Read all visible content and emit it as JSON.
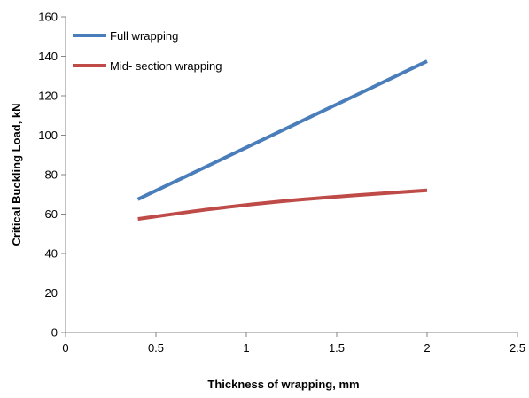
{
  "chart_data": {
    "type": "line",
    "title": "",
    "xlabel": "Thickness of wrapping, mm",
    "ylabel": "Critical Buckling  Load, kN",
    "xlim": [
      0,
      2.5
    ],
    "ylim": [
      0,
      160
    ],
    "x_ticks": [
      0,
      0.5,
      1,
      1.5,
      2,
      2.5
    ],
    "x_tick_labels": [
      "0",
      "0.5",
      "1",
      "1.5",
      "2",
      "2.5"
    ],
    "y_ticks": [
      0,
      20,
      40,
      60,
      80,
      100,
      120,
      140,
      160
    ],
    "y_tick_labels": [
      "0",
      "20",
      "40",
      "60",
      "80",
      "100",
      "120",
      "140",
      "160"
    ],
    "grid": false,
    "legend_position": "top-left",
    "series": [
      {
        "name": "Full wrapping",
        "color": "#4a7ebb",
        "x": [
          0.4,
          0.8,
          1.2,
          1.6,
          2.0
        ],
        "y": [
          67.5,
          85.0,
          102.5,
          120.0,
          137.5
        ]
      },
      {
        "name": "Mid- section wrapping",
        "color": "#be4b48",
        "x": [
          0.4,
          0.8,
          1.2,
          1.6,
          2.0
        ],
        "y": [
          57.5,
          62.5,
          66.5,
          69.5,
          72.0
        ]
      }
    ]
  }
}
